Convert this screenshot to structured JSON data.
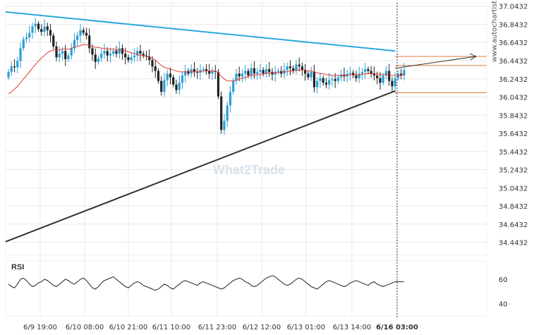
{
  "chart_data": {
    "type": "candlestick",
    "brand": "www.autochartist.com",
    "watermark": "What2Trade",
    "price_axis": {
      "ticks": [
        "37.0432",
        "36.8432",
        "36.6432",
        "36.4432",
        "36.2432",
        "36.0432",
        "35.8432",
        "35.6432",
        "35.4432",
        "35.2432",
        "35.0432",
        "34.8432",
        "34.6432",
        "34.4432"
      ],
      "range": [
        34.3,
        37.08
      ]
    },
    "time_axis": {
      "ticks": [
        "6/9 19:00",
        "6/10 08:00",
        "6/10 21:00",
        "6/11 10:00",
        "6/11 23:00",
        "6/12 12:00",
        "6/13 01:00",
        "6/13 14:00",
        "6/16 03:00"
      ]
    },
    "rsi_panel": {
      "label": "RSI",
      "ticks": [
        "60",
        "40"
      ],
      "range": [
        30,
        75
      ]
    },
    "colors": {
      "up_candle": "#2a9fd6",
      "down_candle": "#222222",
      "ma": "#e53935",
      "upper_trend": "#29a8e0",
      "lower_trend": "#333333",
      "levels": "#e07b39",
      "grid": "#e8e8e8",
      "rsi": "#222222"
    },
    "pattern": {
      "type": "triangle",
      "upper_line": [
        [
          0,
          36.98
        ],
        [
          129,
          36.55
        ]
      ],
      "lower_line": [
        [
          0,
          34.45
        ],
        [
          129,
          36.11
        ]
      ],
      "breakout_arrow": [
        [
          129,
          36.36
        ],
        [
          156,
          36.49
        ]
      ],
      "levels": [
        36.49,
        36.39,
        36.09
      ]
    },
    "series": [
      {
        "name": "price",
        "values": [
          36.32,
          36.38,
          36.37,
          36.44,
          36.58,
          36.68,
          36.7,
          36.75,
          36.82,
          36.85,
          36.79,
          36.76,
          36.82,
          36.78,
          36.72,
          36.6,
          36.48,
          36.52,
          36.55,
          36.46,
          36.5,
          36.58,
          36.67,
          36.72,
          36.78,
          36.75,
          36.72,
          36.58,
          36.51,
          36.43,
          36.47,
          36.52,
          36.55,
          36.5,
          36.52,
          36.55,
          36.52,
          36.58,
          36.52,
          36.48,
          36.45,
          36.48,
          36.5,
          36.55,
          36.52,
          36.5,
          36.49,
          36.45,
          36.38,
          36.33,
          36.22,
          36.1,
          36.23,
          36.3,
          36.26,
          36.18,
          36.12,
          36.2,
          36.28,
          36.33,
          36.3,
          36.35,
          36.32,
          36.31,
          36.34,
          36.35,
          36.33,
          36.3,
          36.33,
          36.32,
          36.05,
          35.68,
          35.78,
          35.95,
          36.1,
          36.22,
          36.3,
          36.27,
          36.3,
          36.33,
          36.28,
          36.36,
          36.3,
          36.32,
          36.34,
          36.3,
          36.35,
          36.32,
          36.29,
          36.32,
          36.33,
          36.3,
          36.34,
          36.38,
          36.36,
          36.33,
          36.4,
          36.38,
          36.34,
          36.3,
          36.26,
          36.32,
          36.15,
          36.22,
          36.25,
          36.2,
          36.18,
          36.23,
          36.24,
          36.22,
          36.26,
          36.29,
          36.27,
          36.3,
          36.31,
          36.28,
          36.25,
          36.3,
          36.32,
          36.35,
          36.33,
          36.3,
          36.28,
          36.25,
          36.2,
          36.28,
          36.33,
          36.22,
          36.16,
          36.25,
          36.3,
          36.28,
          36.34
        ]
      },
      {
        "name": "moving average",
        "values": [
          36.08,
          36.1,
          36.13,
          36.16,
          36.2,
          36.24,
          36.28,
          36.32,
          36.36,
          36.4,
          36.44,
          36.47,
          36.5,
          36.53,
          36.55,
          36.56,
          36.56,
          36.56,
          36.57,
          36.57,
          36.57,
          36.58,
          36.59,
          36.6,
          36.61,
          36.62,
          36.62,
          36.61,
          36.6,
          36.59,
          36.59,
          36.58,
          36.58,
          36.57,
          36.57,
          36.57,
          36.56,
          36.56,
          36.56,
          36.55,
          36.54,
          36.53,
          36.52,
          36.51,
          36.5,
          36.5,
          36.49,
          36.48,
          36.47,
          36.45,
          36.42,
          36.39,
          36.37,
          36.36,
          36.35,
          36.34,
          36.33,
          36.32,
          36.32,
          36.32,
          36.32,
          36.32,
          36.32,
          36.32,
          36.32,
          36.33,
          36.33,
          36.33,
          36.33,
          36.33,
          36.31,
          36.27,
          36.24,
          36.22,
          36.22,
          36.22,
          36.23,
          36.24,
          36.25,
          36.26,
          36.27,
          36.28,
          36.28,
          36.29,
          36.29,
          36.3,
          36.3,
          36.31,
          36.31,
          36.31,
          36.31,
          36.32,
          36.32,
          36.32,
          36.33,
          36.33,
          36.34,
          36.34,
          36.34,
          36.34,
          36.33,
          36.33,
          36.32,
          36.31,
          36.3,
          36.3,
          36.29,
          36.29,
          36.28,
          36.28,
          36.28,
          36.28,
          36.28,
          36.28,
          36.29,
          36.29,
          36.29,
          36.29,
          36.29,
          36.3,
          36.3,
          36.3,
          36.3,
          36.3,
          36.29,
          36.29,
          36.29,
          36.29,
          36.28,
          36.28,
          36.28,
          36.28,
          36.29
        ]
      },
      {
        "name": "RSI",
        "values": [
          56,
          54,
          53,
          56,
          60,
          61,
          59,
          56,
          54,
          55,
          57,
          58,
          60,
          59,
          57,
          55,
          54,
          56,
          58,
          60,
          59,
          57,
          56,
          58,
          60,
          61,
          59,
          56,
          53,
          52,
          54,
          57,
          59,
          60,
          61,
          62,
          60,
          58,
          56,
          54,
          53,
          55,
          57,
          58,
          57,
          55,
          54,
          53,
          52,
          51,
          52,
          54,
          56,
          55,
          53,
          52,
          54,
          56,
          58,
          59,
          58,
          57,
          56,
          55,
          57,
          58,
          57,
          56,
          55,
          54,
          53,
          52,
          53,
          55,
          57,
          59,
          60,
          61,
          60,
          58,
          57,
          55,
          54,
          55,
          57,
          59,
          61,
          62,
          63,
          62,
          60,
          58,
          56,
          55,
          56,
          58,
          60,
          61,
          60,
          58,
          56,
          54,
          53,
          52,
          54,
          56,
          58,
          59,
          58,
          57,
          56,
          55,
          54,
          55,
          57,
          58,
          59,
          58,
          57,
          56,
          55,
          57,
          58,
          56,
          55,
          54,
          55,
          56,
          57,
          58,
          58,
          58,
          58
        ]
      }
    ]
  }
}
